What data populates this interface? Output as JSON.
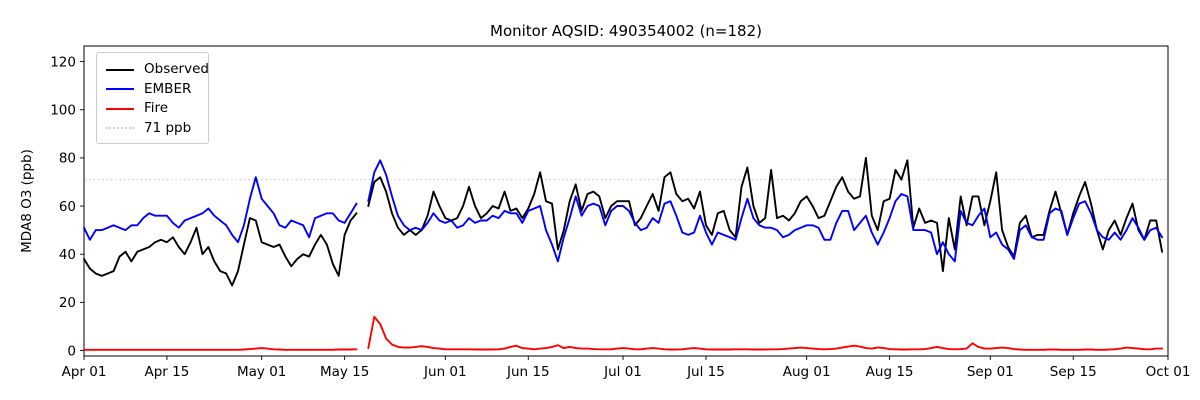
{
  "chart_data": {
    "type": "line",
    "title": "Monitor AQSID: 490354002 (n=182)",
    "ylabel": "MDA8 O3 (ppb)",
    "x_unit": "days since Apr 01 (daily values, Apr 01 - Sep 30; May 18 missing)",
    "x_ticks": [
      {
        "label": "Apr 01",
        "day": 0
      },
      {
        "label": "Apr 15",
        "day": 14
      },
      {
        "label": "May 01",
        "day": 30
      },
      {
        "label": "May 15",
        "day": 44
      },
      {
        "label": "Jun 01",
        "day": 61
      },
      {
        "label": "Jun 15",
        "day": 75
      },
      {
        "label": "Jul 01",
        "day": 91
      },
      {
        "label": "Jul 15",
        "day": 105
      },
      {
        "label": "Aug 01",
        "day": 122
      },
      {
        "label": "Aug 15",
        "day": 136
      },
      {
        "label": "Sep 01",
        "day": 153
      },
      {
        "label": "Sep 15",
        "day": 167
      },
      {
        "label": "Oct 01",
        "day": 183
      }
    ],
    "y_ticks": [
      0,
      20,
      40,
      60,
      80,
      100,
      120
    ],
    "ylim": [
      -2.3,
      126.5
    ],
    "xlim_days": [
      0,
      183
    ],
    "grid": false,
    "legend_position": "upper left",
    "threshold": {
      "label": "71 ppb",
      "value": 71,
      "color": "#d3d3d3",
      "style": "dotted"
    },
    "series": [
      {
        "name": "Observed",
        "color": "#000000",
        "values": [
          38,
          34,
          32,
          31,
          32,
          33,
          39,
          41,
          37,
          41,
          42,
          43,
          45,
          46,
          45,
          47,
          43,
          40,
          45,
          51,
          40,
          43,
          37,
          33,
          32,
          27,
          33,
          44,
          55,
          54,
          45,
          44,
          43,
          44,
          39,
          35,
          38,
          40,
          39,
          44,
          48,
          44,
          36,
          31,
          48,
          54,
          57,
          null,
          60,
          70,
          72,
          66,
          57,
          51,
          48,
          50,
          48,
          50,
          56,
          66,
          60,
          55,
          54,
          55,
          60,
          68,
          60,
          55,
          57,
          60,
          59,
          66,
          58,
          59,
          55,
          59,
          65,
          74,
          62,
          61,
          42,
          50,
          62,
          69,
          58,
          65,
          66,
          64,
          55,
          60,
          62,
          62,
          62,
          52,
          55,
          60,
          65,
          58,
          72,
          74,
          65,
          62,
          63,
          59,
          66,
          52,
          48,
          57,
          58,
          50,
          47,
          68,
          76,
          60,
          53,
          55,
          75,
          55,
          56,
          54,
          57,
          62,
          64,
          60,
          55,
          56,
          62,
          68,
          72,
          66,
          63,
          64,
          80,
          56,
          50,
          62,
          63,
          75,
          71,
          79,
          51,
          59,
          53,
          54,
          53,
          33,
          55,
          42,
          64,
          52,
          64,
          64,
          52,
          62,
          74,
          50,
          43,
          39,
          53,
          56,
          47,
          48,
          48,
          58,
          66,
          57,
          48,
          57,
          64,
          70,
          61,
          50,
          42,
          50,
          54,
          48,
          55,
          61,
          50,
          46,
          54,
          54,
          41
        ]
      },
      {
        "name": "EMBER",
        "color": "#0000ff",
        "values": [
          51,
          46,
          50,
          50,
          51,
          52,
          51,
          50,
          52,
          52,
          55,
          57,
          56,
          56,
          56,
          53,
          51,
          54,
          55,
          56,
          57,
          59,
          56,
          54,
          52,
          48,
          45,
          52,
          63,
          72,
          63,
          60,
          57,
          52,
          51,
          54,
          53,
          52,
          47,
          55,
          56,
          57,
          57,
          54,
          53,
          57,
          61,
          null,
          62,
          74,
          79,
          73,
          64,
          56,
          52,
          50,
          51,
          50,
          53,
          57,
          54,
          53,
          54,
          51,
          52,
          55,
          53,
          54,
          54,
          56,
          55,
          58,
          57,
          57,
          53,
          58,
          59,
          60,
          50,
          44,
          37,
          47,
          55,
          64,
          56,
          60,
          61,
          60,
          52,
          58,
          60,
          60,
          58,
          53,
          50,
          51,
          55,
          53,
          61,
          62,
          56,
          49,
          48,
          49,
          56,
          49,
          44,
          49,
          48,
          47,
          46,
          55,
          63,
          55,
          52,
          51,
          51,
          50,
          47,
          48,
          50,
          51,
          52,
          52,
          51,
          46,
          46,
          53,
          58,
          58,
          50,
          53,
          56,
          49,
          44,
          49,
          55,
          62,
          65,
          64,
          50,
          50,
          50,
          49,
          40,
          45,
          40,
          37,
          58,
          53,
          52,
          56,
          59,
          47,
          49,
          44,
          42,
          38,
          50,
          52,
          47,
          46,
          46,
          57,
          59,
          58,
          48,
          55,
          61,
          62,
          57,
          50,
          47,
          46,
          49,
          46,
          50,
          55,
          51,
          46,
          50,
          51,
          47
        ]
      },
      {
        "name": "Fire",
        "color": "#ff0000",
        "values": [
          0.3,
          0.3,
          0.3,
          0.3,
          0.3,
          0.3,
          0.3,
          0.3,
          0.3,
          0.3,
          0.3,
          0.3,
          0.3,
          0.3,
          0.3,
          0.3,
          0.3,
          0.3,
          0.3,
          0.3,
          0.3,
          0.3,
          0.3,
          0.3,
          0.3,
          0.3,
          0.3,
          0.4,
          0.6,
          0.8,
          1.0,
          0.8,
          0.5,
          0.4,
          0.3,
          0.3,
          0.3,
          0.3,
          0.3,
          0.3,
          0.3,
          0.3,
          0.3,
          0.4,
          0.4,
          0.4,
          0.5,
          null,
          1.0,
          14.0,
          11.0,
          5.0,
          2.5,
          1.5,
          1.2,
          1.2,
          1.5,
          1.8,
          1.5,
          1.0,
          0.8,
          0.5,
          0.5,
          0.5,
          0.5,
          0.5,
          0.4,
          0.4,
          0.4,
          0.4,
          0.5,
          0.8,
          1.5,
          2.0,
          1.0,
          0.8,
          0.5,
          0.8,
          1.0,
          1.5,
          2.2,
          1.0,
          1.5,
          1.0,
          0.8,
          0.8,
          0.6,
          0.5,
          0.5,
          0.5,
          0.8,
          1.0,
          0.8,
          0.5,
          0.5,
          0.8,
          1.0,
          0.8,
          0.5,
          0.4,
          0.4,
          0.5,
          0.8,
          1.0,
          0.8,
          0.5,
          0.4,
          0.4,
          0.4,
          0.4,
          0.5,
          0.5,
          0.5,
          0.4,
          0.4,
          0.4,
          0.5,
          0.5,
          0.6,
          0.8,
          1.0,
          1.2,
          1.0,
          0.8,
          0.6,
          0.5,
          0.6,
          0.8,
          1.2,
          1.6,
          2.0,
          1.6,
          1.0,
          0.8,
          1.3,
          1.0,
          0.6,
          0.5,
          0.4,
          0.4,
          0.5,
          0.5,
          0.6,
          1.0,
          1.5,
          1.0,
          0.6,
          0.5,
          0.6,
          0.8,
          3.0,
          1.5,
          0.8,
          0.8,
          1.0,
          1.2,
          1.0,
          0.6,
          0.4,
          0.3,
          0.3,
          0.3,
          0.3,
          0.4,
          0.4,
          0.3,
          0.3,
          0.3,
          0.3,
          0.4,
          0.4,
          0.3,
          0.3,
          0.4,
          0.5,
          0.8,
          1.2,
          1.0,
          0.8,
          0.5,
          0.5,
          0.8,
          0.8
        ]
      }
    ]
  },
  "legend": {
    "entries": [
      {
        "label": "Observed",
        "color": "#000000",
        "style": "solid"
      },
      {
        "label": "EMBER",
        "color": "#0000ff",
        "style": "solid"
      },
      {
        "label": "Fire",
        "color": "#ff0000",
        "style": "solid"
      },
      {
        "label": "71 ppb",
        "color": "#d3d3d3",
        "style": "dotted"
      }
    ]
  }
}
